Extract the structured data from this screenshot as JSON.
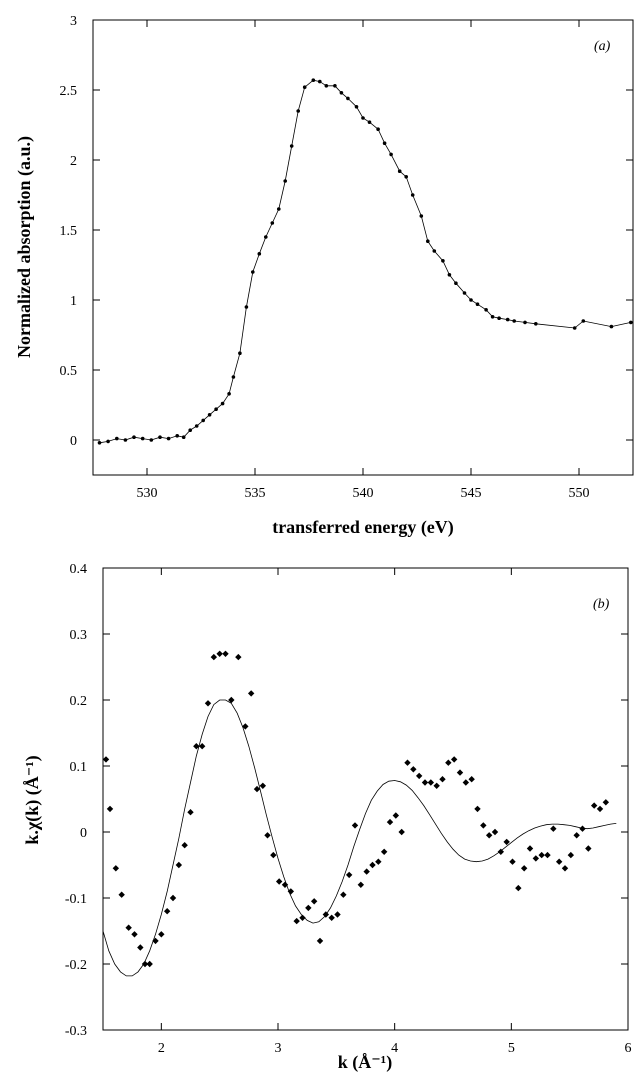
{
  "chart_data": [
    {
      "type": "line",
      "panel_label": "(a)",
      "xlabel": "transferred energy (eV)",
      "ylabel": "Normalized absorption (a.u.)",
      "xlim": [
        527.5,
        552.5
      ],
      "ylim": [
        -0.25,
        3.0
      ],
      "xticks": [
        530,
        535,
        540,
        545,
        550
      ],
      "yticks": [
        0,
        0.5,
        1,
        1.5,
        2,
        2.5,
        3
      ],
      "xtick_labels": [
        "530",
        "535",
        "540",
        "545",
        "550"
      ],
      "ytick_labels": [
        "0",
        "0.5",
        "1",
        "1.5",
        "2",
        "2.5",
        "3"
      ],
      "grid": false,
      "series": [
        {
          "markers": "dots",
          "line": true,
          "x": [
            527.8,
            528.2,
            528.6,
            529.0,
            529.4,
            529.8,
            530.2,
            530.6,
            531.0,
            531.4,
            531.7,
            532.0,
            532.3,
            532.6,
            532.9,
            533.2,
            533.5,
            533.8,
            534.0,
            534.3,
            534.6,
            534.9,
            535.2,
            535.5,
            535.8,
            536.1,
            536.4,
            536.7,
            537.0,
            537.3,
            537.7,
            538.0,
            538.3,
            538.7,
            539.0,
            539.3,
            539.7,
            540.0,
            540.3,
            540.7,
            541.0,
            541.3,
            541.7,
            542.0,
            542.3,
            542.7,
            543.0,
            543.3,
            543.7,
            544.0,
            544.3,
            544.7,
            545.0,
            545.3,
            545.7,
            546.0,
            546.3,
            546.7,
            547.0,
            547.5,
            548.0,
            549.8,
            550.2,
            551.5,
            552.4
          ],
          "y": [
            -0.02,
            -0.01,
            0.01,
            0.0,
            0.02,
            0.01,
            0.0,
            0.02,
            0.01,
            0.03,
            0.02,
            0.07,
            0.1,
            0.14,
            0.18,
            0.22,
            0.26,
            0.33,
            0.45,
            0.62,
            0.95,
            1.2,
            1.33,
            1.45,
            1.55,
            1.65,
            1.85,
            2.1,
            2.35,
            2.52,
            2.57,
            2.56,
            2.53,
            2.53,
            2.48,
            2.44,
            2.38,
            2.3,
            2.27,
            2.22,
            2.12,
            2.04,
            1.92,
            1.88,
            1.75,
            1.6,
            1.42,
            1.35,
            1.28,
            1.18,
            1.12,
            1.05,
            1.0,
            0.97,
            0.93,
            0.88,
            0.87,
            0.86,
            0.85,
            0.84,
            0.83,
            0.8,
            0.85,
            0.81,
            0.84
          ]
        }
      ]
    },
    {
      "type": "scatter",
      "panel_label": "(b)",
      "xlabel": "k (Å⁻¹)",
      "ylabel": "k.χ(k) (Å⁻¹)",
      "xlim": [
        1.5,
        6.0
      ],
      "ylim": [
        -0.3,
        0.4
      ],
      "xticks": [
        2,
        3,
        4,
        5,
        6
      ],
      "yticks": [
        -0.3,
        -0.2,
        -0.1,
        0,
        0.1,
        0.2,
        0.3,
        0.4
      ],
      "xtick_labels": [
        "2",
        "3",
        "4",
        "5",
        "6"
      ],
      "ytick_labels": [
        "-0.3",
        "-0.2",
        "-0.1",
        "0",
        "0.1",
        "0.2",
        "0.3",
        "0.4"
      ],
      "grid": false,
      "series": [
        {
          "markers": "diamonds",
          "x": [
            1.52,
            1.56,
            1.61,
            1.66,
            1.72,
            1.77,
            1.82,
            1.86,
            1.9,
            1.95,
            2.0,
            2.05,
            2.1,
            2.15,
            2.2,
            2.25,
            2.3,
            2.35,
            2.4,
            2.45,
            2.5,
            2.55,
            2.6,
            2.66,
            2.72,
            2.77,
            2.82,
            2.87,
            2.91,
            2.96,
            3.01,
            3.06,
            3.11,
            3.16,
            3.21,
            3.26,
            3.31,
            3.36,
            3.41,
            3.46,
            3.51,
            3.56,
            3.61,
            3.66,
            3.71,
            3.76,
            3.81,
            3.86,
            3.91,
            3.96,
            4.01,
            4.06,
            4.11,
            4.16,
            4.21,
            4.26,
            4.31,
            4.36,
            4.41,
            4.46,
            4.51,
            4.56,
            4.61,
            4.66,
            4.71,
            4.76,
            4.81,
            4.86,
            4.91,
            4.96,
            5.01,
            5.06,
            5.11,
            5.16,
            5.21,
            5.26,
            5.31,
            5.36,
            5.41,
            5.46,
            5.51,
            5.56,
            5.61,
            5.66,
            5.71,
            5.76,
            5.81
          ],
          "y": [
            0.11,
            0.035,
            -0.055,
            -0.095,
            -0.145,
            -0.155,
            -0.175,
            -0.2,
            -0.2,
            -0.165,
            -0.155,
            -0.12,
            -0.1,
            -0.05,
            -0.02,
            0.03,
            0.13,
            0.13,
            0.195,
            0.265,
            0.27,
            0.27,
            0.2,
            0.265,
            0.16,
            0.21,
            0.065,
            0.07,
            -0.005,
            -0.035,
            -0.075,
            -0.08,
            -0.09,
            -0.135,
            -0.13,
            -0.115,
            -0.105,
            -0.165,
            -0.125,
            -0.13,
            -0.125,
            -0.095,
            -0.065,
            0.01,
            -0.08,
            -0.06,
            -0.05,
            -0.045,
            -0.03,
            0.015,
            0.025,
            0.0,
            0.105,
            0.095,
            0.085,
            0.075,
            0.075,
            0.07,
            0.08,
            0.105,
            0.11,
            0.09,
            0.075,
            0.08,
            0.035,
            0.01,
            -0.005,
            0.0,
            -0.03,
            -0.015,
            -0.045,
            -0.085,
            -0.055,
            -0.025,
            -0.04,
            -0.035,
            -0.035,
            0.005,
            -0.045,
            -0.055,
            -0.035,
            -0.005,
            0.005,
            -0.025,
            0.04,
            0.035,
            0.045
          ]
        },
        {
          "markers": "none",
          "line": true,
          "x": [
            1.5,
            1.55,
            1.6,
            1.65,
            1.7,
            1.75,
            1.8,
            1.85,
            1.9,
            1.95,
            2.0,
            2.05,
            2.1,
            2.15,
            2.2,
            2.25,
            2.3,
            2.35,
            2.4,
            2.45,
            2.5,
            2.55,
            2.6,
            2.65,
            2.7,
            2.75,
            2.8,
            2.85,
            2.9,
            2.95,
            3.0,
            3.05,
            3.1,
            3.15,
            3.2,
            3.25,
            3.3,
            3.35,
            3.4,
            3.45,
            3.5,
            3.55,
            3.6,
            3.65,
            3.7,
            3.75,
            3.8,
            3.85,
            3.9,
            3.95,
            4.0,
            4.05,
            4.1,
            4.15,
            4.2,
            4.25,
            4.3,
            4.35,
            4.4,
            4.45,
            4.5,
            4.55,
            4.6,
            4.65,
            4.7,
            4.75,
            4.8,
            4.85,
            4.9,
            4.95,
            5.0,
            5.05,
            5.1,
            5.15,
            5.2,
            5.25,
            5.3,
            5.35,
            5.4,
            5.45,
            5.5,
            5.55,
            5.6,
            5.65,
            5.7,
            5.75,
            5.8,
            5.85,
            5.9
          ],
          "y": [
            -0.15,
            -0.18,
            -0.2,
            -0.212,
            -0.218,
            -0.218,
            -0.212,
            -0.2,
            -0.18,
            -0.155,
            -0.125,
            -0.09,
            -0.05,
            -0.01,
            0.035,
            0.075,
            0.115,
            0.148,
            0.175,
            0.193,
            0.2,
            0.2,
            0.195,
            0.18,
            0.158,
            0.13,
            0.097,
            0.062,
            0.026,
            -0.008,
            -0.04,
            -0.068,
            -0.093,
            -0.112,
            -0.125,
            -0.134,
            -0.138,
            -0.136,
            -0.128,
            -0.115,
            -0.097,
            -0.075,
            -0.05,
            -0.022,
            0.004,
            0.028,
            0.048,
            0.062,
            0.072,
            0.077,
            0.078,
            0.076,
            0.071,
            0.063,
            0.052,
            0.04,
            0.026,
            0.012,
            -0.002,
            -0.015,
            -0.026,
            -0.035,
            -0.041,
            -0.044,
            -0.045,
            -0.044,
            -0.041,
            -0.036,
            -0.03,
            -0.023,
            -0.016,
            -0.009,
            -0.003,
            0.002,
            0.006,
            0.009,
            0.011,
            0.012,
            0.012,
            0.011,
            0.01,
            0.008,
            0.006,
            0.005,
            0.006,
            0.008,
            0.01,
            0.012,
            0.013
          ]
        }
      ]
    }
  ]
}
